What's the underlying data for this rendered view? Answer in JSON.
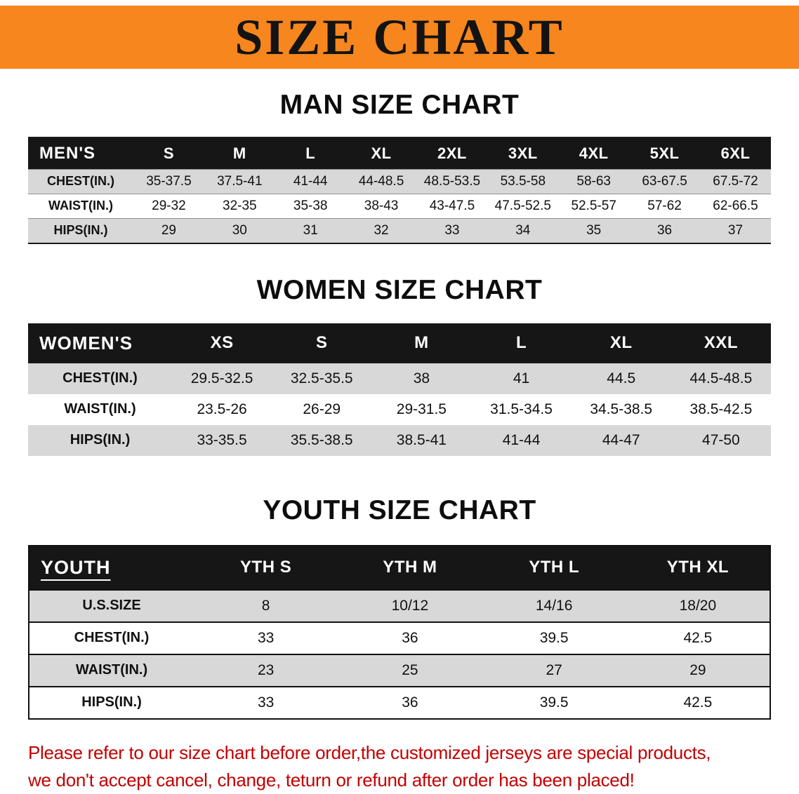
{
  "banner": {
    "title": "SIZE CHART"
  },
  "colors": {
    "banner_bg": "#F6861D",
    "table_header_bg": "#161616",
    "row_stripe": "#D8D8D8",
    "disclaimer_red": "#C40000"
  },
  "sections": [
    {
      "heading": "MAN SIZE CHART",
      "table": {
        "header": [
          "MEN'S",
          "S",
          "M",
          "L",
          "XL",
          "2XL",
          "3XL",
          "4XL",
          "5XL",
          "6XL"
        ],
        "rows": [
          [
            "CHEST(IN.)",
            "35-37.5",
            "37.5-41",
            "41-44",
            "44-48.5",
            "48.5-53.5",
            "53.5-58",
            "58-63",
            "63-67.5",
            "67.5-72"
          ],
          [
            "WAIST(IN.)",
            "29-32",
            "32-35",
            "35-38",
            "38-43",
            "43-47.5",
            "47.5-52.5",
            "52.5-57",
            "57-62",
            "62-66.5"
          ],
          [
            "HIPS(IN.)",
            "29",
            "30",
            "31",
            "32",
            "33",
            "34",
            "35",
            "36",
            "37"
          ]
        ]
      }
    },
    {
      "heading": "WOMEN SIZE CHART",
      "table": {
        "header": [
          "WOMEN'S",
          "XS",
          "S",
          "M",
          "L",
          "XL",
          "XXL"
        ],
        "rows": [
          [
            "CHEST(IN.)",
            "29.5-32.5",
            "32.5-35.5",
            "38",
            "41",
            "44.5",
            "44.5-48.5"
          ],
          [
            "WAIST(IN.)",
            "23.5-26",
            "26-29",
            "29-31.5",
            "31.5-34.5",
            "34.5-38.5",
            "38.5-42.5"
          ],
          [
            "HIPS(IN.)",
            "33-35.5",
            "35.5-38.5",
            "38.5-41",
            "41-44",
            "44-47",
            "47-50"
          ]
        ]
      }
    },
    {
      "heading": "YOUTH SIZE CHART",
      "table": {
        "header": [
          "YOUTH",
          "YTH S",
          "YTH M",
          "YTH L",
          "YTH XL"
        ],
        "rows": [
          [
            "U.S.SIZE",
            "8",
            "10/12",
            "14/16",
            "18/20"
          ],
          [
            "CHEST(IN.)",
            "33",
            "36",
            "39.5",
            "42.5"
          ],
          [
            "WAIST(IN.)",
            "23",
            "25",
            "27",
            "29"
          ],
          [
            "HIPS(IN.)",
            "33",
            "36",
            "39.5",
            "42.5"
          ]
        ]
      }
    }
  ],
  "disclaimer": {
    "line1": "Please refer to our size chart before order,the customized jerseys are special products,",
    "line2": "we don't accept cancel, change, teturn or refund after order has been placed!"
  }
}
